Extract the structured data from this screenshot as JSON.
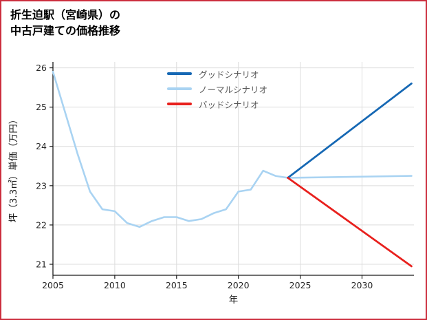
{
  "frame": {
    "border_color": "#cc2e3e"
  },
  "header": {
    "title_line1": "折生迫駅（宮崎県）の",
    "title_line2": "中古戸建ての価格推移"
  },
  "chart_data": {
    "type": "line",
    "title": "折生迫駅（宮崎県）の中古戸建ての価格推移",
    "xlabel": "年",
    "ylabel": "坪（3.3㎡）単価（万円）",
    "xlim": [
      2005,
      2034.2
    ],
    "ylim": [
      20.72,
      26.15
    ],
    "xticks": [
      2005,
      2010,
      2015,
      2020,
      2025,
      2030
    ],
    "yticks": [
      21,
      22,
      23,
      24,
      25,
      26
    ],
    "grid": true,
    "grid_color": "#dcdcdc",
    "axis_color": "#1a1a1a",
    "tick_label_color": "#262626",
    "legend_position": "upper-center-inside",
    "legend_text_color": "#595959",
    "series": [
      {
        "name": "グッドシナリオ",
        "color": "#1668b4",
        "width": 2.8,
        "zorder": 2,
        "x": [
          2024,
          2034
        ],
        "y": [
          23.2,
          25.6
        ]
      },
      {
        "name": "ノーマルシナリオ",
        "color": "#a9d3f2",
        "width": 2.6,
        "zorder": 1,
        "x": [
          2005,
          2006,
          2007,
          2008,
          2009,
          2010,
          2011,
          2012,
          2013,
          2014,
          2015,
          2016,
          2017,
          2018,
          2019,
          2020,
          2021,
          2022,
          2023,
          2024,
          2034
        ],
        "y": [
          25.9,
          24.85,
          23.8,
          22.85,
          22.4,
          22.35,
          22.05,
          21.95,
          22.1,
          22.2,
          22.2,
          22.1,
          22.15,
          22.3,
          22.4,
          22.85,
          22.9,
          23.38,
          23.25,
          23.2,
          23.25
        ]
      },
      {
        "name": "バッドシナリオ",
        "color": "#e8201d",
        "width": 2.8,
        "zorder": 2,
        "x": [
          2024,
          2034
        ],
        "y": [
          23.2,
          20.95
        ]
      }
    ]
  }
}
